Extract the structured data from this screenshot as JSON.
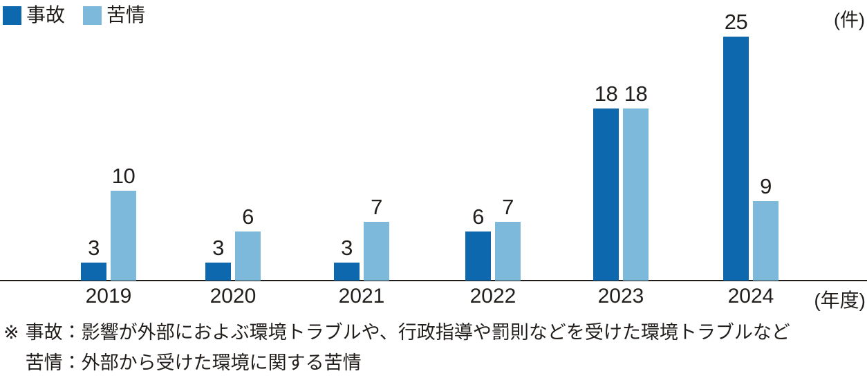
{
  "chart_data": {
    "type": "bar",
    "title": "",
    "unit_label": "(件)",
    "xaxis_suffix_label": "(年度)",
    "xlabel": "年度",
    "ylabel": "件",
    "categories": [
      "2019",
      "2020",
      "2021",
      "2022",
      "2023",
      "2024"
    ],
    "series": [
      {
        "name": "事故",
        "color": "#0e68ae",
        "values": [
          3,
          3,
          3,
          6,
          18,
          25
        ]
      },
      {
        "name": "苦情",
        "color": "#7cb9da",
        "values": [
          10,
          6,
          7,
          7,
          18,
          9
        ]
      }
    ],
    "legend_position": "top-left",
    "grid": false,
    "value_labels_shown": true,
    "ylim": [
      0,
      25
    ]
  },
  "footnote": {
    "marker": "※",
    "lines": [
      "事故：影響が外部におよぶ環境トラブルや、行政指導や罰則などを受けた環境トラブルなど",
      "苦情：外部から受けた環境に関する苦情"
    ]
  },
  "colors": {
    "accident": "#0e68ae",
    "complaint": "#7cb9da",
    "text": "#221e1c",
    "axis": "#1f1b19",
    "background": "#ffffff"
  }
}
